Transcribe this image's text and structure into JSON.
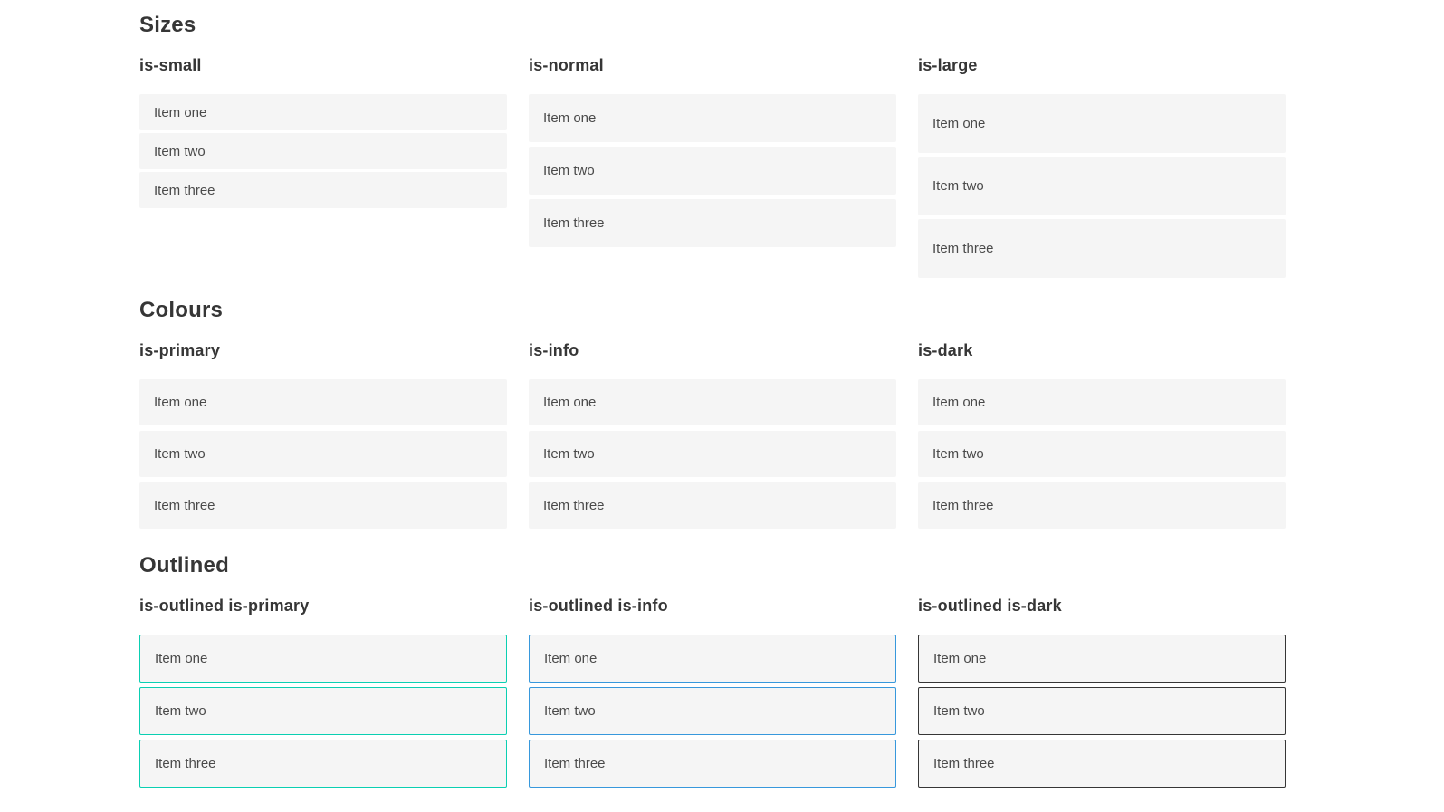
{
  "theme": {
    "primary": "#0acfb2",
    "info": "#3798dc",
    "dark": "#363636",
    "item-bg": "#f5f5f5",
    "text": "#4a4a4a"
  },
  "sections": [
    {
      "title": "Sizes",
      "groups": [
        {
          "label": "is-small",
          "items": [
            "Item one",
            "Item two",
            "Item three"
          ]
        },
        {
          "label": "is-normal",
          "items": [
            "Item one",
            "Item two",
            "Item three"
          ]
        },
        {
          "label": "is-large",
          "items": [
            "Item one",
            "Item two",
            "Item three"
          ]
        }
      ]
    },
    {
      "title": "Colours",
      "groups": [
        {
          "label": "is-primary",
          "items": [
            "Item one",
            "Item two",
            "Item three"
          ]
        },
        {
          "label": "is-info",
          "items": [
            "Item one",
            "Item two",
            "Item three"
          ]
        },
        {
          "label": "is-dark",
          "items": [
            "Item one",
            "Item two",
            "Item three"
          ]
        }
      ]
    },
    {
      "title": "Outlined",
      "groups": [
        {
          "label": "is-outlined is-primary",
          "items": [
            "Item one",
            "Item two",
            "Item three"
          ]
        },
        {
          "label": "is-outlined is-info",
          "items": [
            "Item one",
            "Item two",
            "Item three"
          ]
        },
        {
          "label": "is-outlined is-dark",
          "items": [
            "Item one",
            "Item two",
            "Item three"
          ]
        }
      ]
    }
  ]
}
